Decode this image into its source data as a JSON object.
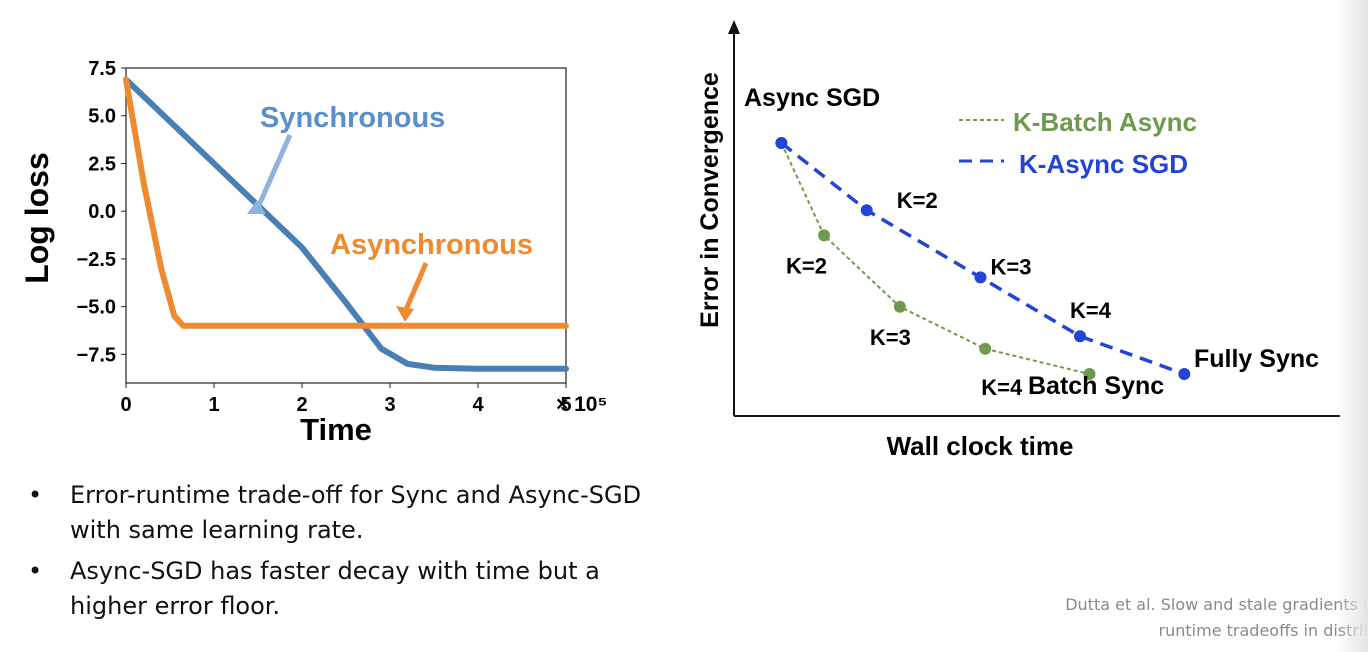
{
  "chart_data": [
    {
      "type": "line",
      "title": "",
      "xlabel": "Time",
      "ylabel": "Log loss",
      "x_multiplier": "× 10⁵",
      "xlim": [
        0,
        5
      ],
      "ylim": [
        -9,
        7.5
      ],
      "x_ticks": [
        "0",
        "1",
        "2",
        "3",
        "4",
        "5"
      ],
      "y_ticks": [
        "7.5",
        "5.0",
        "2.5",
        "0.0",
        "−2.5",
        "−5.0",
        "−7.5"
      ],
      "series": [
        {
          "name": "Synchronous",
          "color": "#4a7fb5",
          "x": [
            0,
            0.5,
            1.0,
            1.5,
            2.0,
            2.5,
            2.9,
            3.2,
            3.5,
            4.0,
            4.5,
            5.0
          ],
          "y": [
            6.9,
            4.7,
            2.5,
            0.3,
            -1.9,
            -4.8,
            -7.2,
            -8.0,
            -8.2,
            -8.25,
            -8.25,
            -8.25
          ]
        },
        {
          "name": "Asynchronous",
          "color": "#ef8a2e",
          "x": [
            0,
            0.2,
            0.4,
            0.55,
            0.65,
            1.0,
            2.0,
            3.0,
            4.0,
            5.0
          ],
          "y": [
            6.9,
            1.5,
            -3.0,
            -5.5,
            -6.0,
            -6.0,
            -6.0,
            -6.0,
            -6.0,
            -6.0
          ]
        }
      ]
    },
    {
      "type": "line",
      "title": "",
      "xlabel": "Wall clock time",
      "ylabel": "Error in Convergence",
      "legend": "top-right",
      "series": [
        {
          "name": "K-Batch Async",
          "color": "#6f9a4e",
          "points": [
            {
              "label": "",
              "x": 1.0,
              "y": 6.5
            },
            {
              "label": "K=2",
              "x": 1.9,
              "y": 4.3
            },
            {
              "label": "K=3",
              "x": 3.5,
              "y": 2.6
            },
            {
              "label": "K=4",
              "x": 5.3,
              "y": 1.6
            },
            {
              "label": "",
              "x": 7.5,
              "y": 1.0
            }
          ]
        },
        {
          "name": "K-Async SGD",
          "color": "#2344d6",
          "points": [
            {
              "label": "",
              "x": 1.0,
              "y": 6.5
            },
            {
              "label": "K=2",
              "x": 2.8,
              "y": 4.9
            },
            {
              "label": "K=3",
              "x": 5.2,
              "y": 3.3
            },
            {
              "label": "K=4",
              "x": 7.3,
              "y": 1.9
            },
            {
              "label": "",
              "x": 9.5,
              "y": 1.0
            }
          ]
        }
      ],
      "annotations": [
        "Async SGD",
        "Fully Sync",
        "Batch Sync"
      ]
    }
  ],
  "bullets": [
    "Error-runtime trade-off for Sync and Async-SGD with same learning rate.",
    "Async-SGD has faster decay with time but a higher error floor."
  ],
  "citation": {
    "line1": "Dutta et al. Slow and stale gradients can w",
    "line2": "runtime tradeoffs in distributed"
  }
}
